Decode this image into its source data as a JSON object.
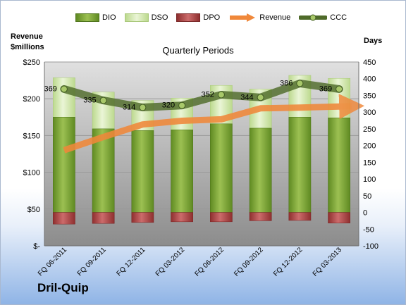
{
  "company": "Dril-Quip",
  "left_axis_title_line1": "Revenue",
  "left_axis_title_line2": "$millions",
  "right_axis_title": "Days",
  "colors": {
    "dio": "#7da33a",
    "dso": "#d4e8b0",
    "dpo": "#b24a4a",
    "revenue": "#f0883a",
    "ccc": "#4f6b2a"
  },
  "chart_data": {
    "type": "bar",
    "title": "Quarterly Periods",
    "categories": [
      "FQ 06-2011",
      "FQ 09-2011",
      "FQ 12-2011",
      "FQ 03-2012",
      "FQ 06-2012",
      "FQ 09-2012",
      "FQ 12-2012",
      "FQ 03-2013"
    ],
    "left_axis": {
      "label": "Revenue $millions",
      "ylim": [
        0,
        250
      ],
      "ticks": [
        "$-",
        "$50",
        "$100",
        "$150",
        "$200",
        "$250"
      ],
      "tick_values": [
        0,
        50,
        100,
        150,
        200,
        250
      ]
    },
    "right_axis": {
      "label": "Days",
      "ylim": [
        -100,
        450
      ],
      "ticks": [
        "-100",
        "-50",
        "0",
        "50",
        "100",
        "150",
        "200",
        "250",
        "300",
        "350",
        "400",
        "450"
      ],
      "tick_values": [
        -100,
        -50,
        0,
        50,
        100,
        150,
        200,
        250,
        300,
        350,
        400,
        450
      ]
    },
    "series": [
      {
        "name": "DIO",
        "type": "stacked-bar",
        "axis": "right",
        "values": [
          285,
          250,
          245,
          247,
          265,
          252,
          285,
          283
        ]
      },
      {
        "name": "DSO",
        "type": "stacked-bar",
        "axis": "right",
        "values": [
          118,
          110,
          90,
          95,
          115,
          117,
          125,
          118
        ]
      },
      {
        "name": "DPO",
        "type": "bar",
        "axis": "right",
        "values": [
          -35,
          -33,
          -30,
          -28,
          -28,
          -25,
          -24,
          -32
        ]
      },
      {
        "name": "Revenue",
        "type": "line",
        "axis": "left",
        "values": [
          130,
          148,
          165,
          170,
          172,
          187,
          188,
          188
        ]
      },
      {
        "name": "CCC",
        "type": "line",
        "axis": "right",
        "values": [
          369,
          335,
          314,
          320,
          352,
          344,
          386,
          369
        ],
        "data_labels": [
          "369",
          "335",
          "314",
          "320",
          "352",
          "344",
          "386",
          "369"
        ]
      }
    ],
    "grid": true,
    "legend_position": "top"
  }
}
